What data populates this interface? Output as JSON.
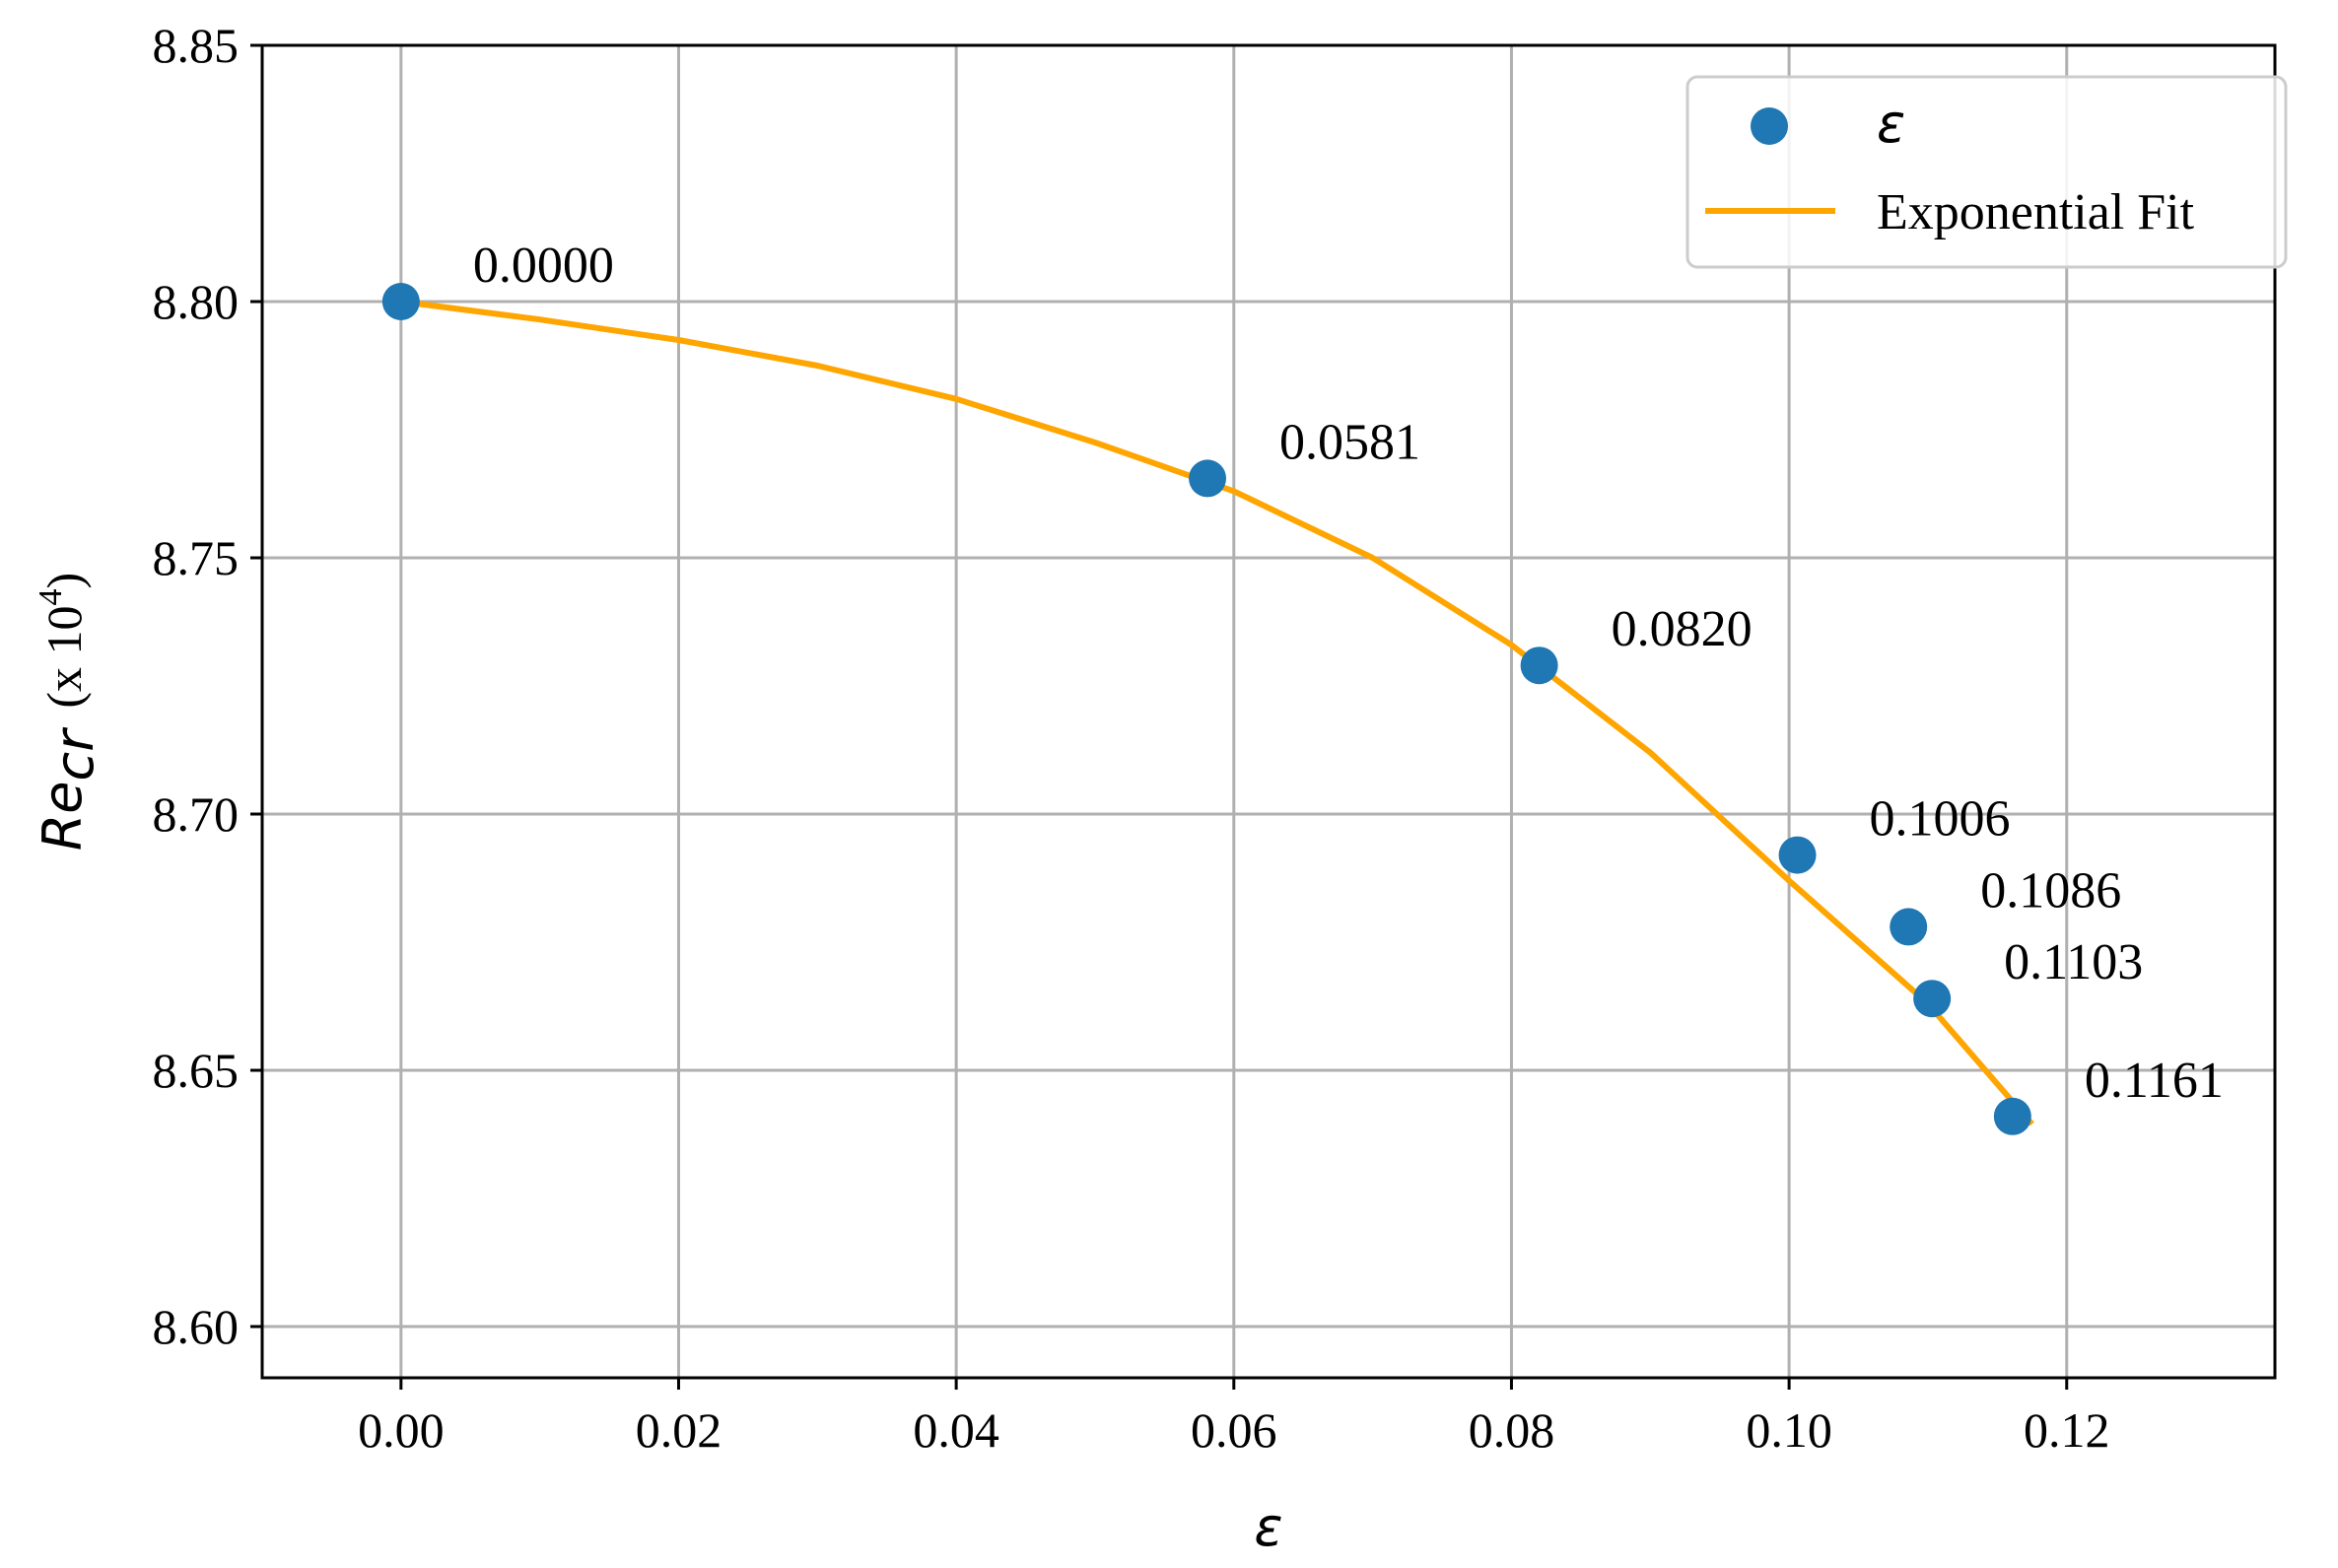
{
  "chart_data": {
    "type": "scatter",
    "xlim": [
      -0.01,
      0.135
    ],
    "ylim": [
      8.59,
      8.85
    ],
    "xticks": [
      "0.00",
      "0.02",
      "0.04",
      "0.06",
      "0.08",
      "0.10",
      "0.12"
    ],
    "yticks": [
      "8.60",
      "8.65",
      "8.70",
      "8.75",
      "8.80",
      "8.85"
    ],
    "xlabel": "ε",
    "ylabel": {
      "main": "Re",
      "sub": "cr",
      "suffix": "(x 10",
      "sup": "4",
      "close": ")"
    },
    "grid": true,
    "legend_position": "top-right",
    "series": [
      {
        "name": "ε",
        "kind": "scatter",
        "color": "#1f77b4",
        "points": [
          {
            "x": 0.0,
            "y": 8.8,
            "label": "0.0000"
          },
          {
            "x": 0.0581,
            "y": 8.7655,
            "label": "0.0581"
          },
          {
            "x": 0.082,
            "y": 8.729,
            "label": "0.0820"
          },
          {
            "x": 0.1006,
            "y": 8.692,
            "label": "0.1006"
          },
          {
            "x": 0.1086,
            "y": 8.678,
            "label": "0.1086"
          },
          {
            "x": 0.1103,
            "y": 8.664,
            "label": "0.1103"
          },
          {
            "x": 0.1161,
            "y": 8.641,
            "label": "0.1161"
          }
        ]
      },
      {
        "name": "Exponential Fit",
        "kind": "line",
        "color": "#ffa500",
        "points": [
          {
            "x": 0.0,
            "y": 8.8
          },
          {
            "x": 0.01,
            "y": 8.7965
          },
          {
            "x": 0.02,
            "y": 8.7925
          },
          {
            "x": 0.03,
            "y": 8.7875
          },
          {
            "x": 0.04,
            "y": 8.781
          },
          {
            "x": 0.05,
            "y": 8.7725
          },
          {
            "x": 0.06,
            "y": 8.763
          },
          {
            "x": 0.07,
            "y": 8.75
          },
          {
            "x": 0.08,
            "y": 8.733
          },
          {
            "x": 0.09,
            "y": 8.712
          },
          {
            "x": 0.1,
            "y": 8.687
          },
          {
            "x": 0.11,
            "y": 8.663
          },
          {
            "x": 0.1175,
            "y": 8.6395
          }
        ]
      }
    ]
  }
}
